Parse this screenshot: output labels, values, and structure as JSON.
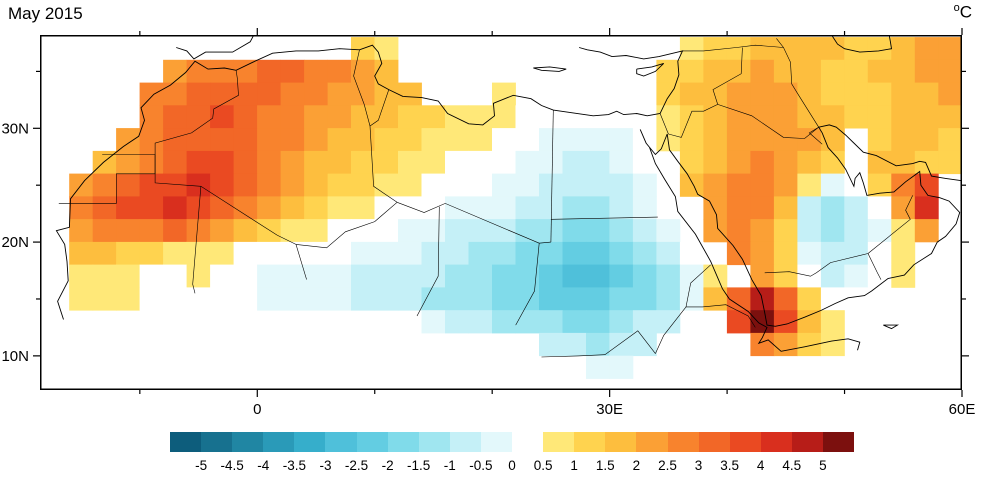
{
  "chart_data": {
    "type": "heatmap",
    "title": "May 2015",
    "units_sup": "o",
    "units_main": "C",
    "lon_range": [
      -18.5,
      60
    ],
    "lat_range": [
      7,
      38.2
    ],
    "grid_on": false,
    "x_axis": {
      "ticks": [
        {
          "value": 0,
          "label": "0"
        },
        {
          "value": 30,
          "label": "30E"
        },
        {
          "value": 60,
          "label": "60E"
        }
      ],
      "minor": [
        -10,
        10,
        20,
        40,
        50
      ]
    },
    "y_axis": {
      "ticks": [
        {
          "value": 10,
          "label": "10N"
        },
        {
          "value": 20,
          "label": "20N"
        },
        {
          "value": 30,
          "label": "30N"
        }
      ],
      "minor": [
        15,
        25,
        35
      ]
    },
    "colorbar": {
      "bin_edges": [
        -5,
        -4.5,
        -4,
        -3.5,
        -3,
        -2.5,
        -2,
        -1.5,
        -1,
        -0.5,
        0,
        0.5,
        1,
        1.5,
        2,
        2.5,
        3,
        3.5,
        4,
        4.5,
        5
      ],
      "labels": [
        "-5",
        "-4.5",
        "-4",
        "-3.5",
        "-3",
        "-2.5",
        "-2",
        "-1.5",
        "-1",
        "-0.5",
        "0",
        "0.5",
        "1",
        "1.5",
        "2",
        "2.5",
        "3",
        "3.5",
        "4",
        "4.5",
        "5"
      ],
      "colors": [
        "#0d5d7c",
        "#17718f",
        "#2086a3",
        "#2a9ab8",
        "#36aecb",
        "#4fc0da",
        "#63cde2",
        "#80dbea",
        "#a0e6f0",
        "#c5f0f7",
        "#e3f8fb",
        "#ffffff",
        "#ffe878",
        "#ffd34f",
        "#fdbe3e",
        "#fba035",
        "#f8832d",
        "#f26727",
        "#ea4a22",
        "#d92f1e",
        "#b71d18",
        "#7c100e"
      ]
    },
    "grid": {
      "lon_start": -17,
      "lon_step": 2,
      "lat_start": 37,
      "lat_step": -2,
      "values": [
        [
          null,
          null,
          null,
          null,
          null,
          null,
          null,
          null,
          null,
          null,
          null,
          null,
          null,
          1.25,
          0.75,
          null,
          null,
          null,
          null,
          null,
          null,
          null,
          null,
          null,
          null,
          null,
          null,
          0.75,
          1.25,
          1.25,
          1.75,
          1.75,
          1.75,
          1.75,
          1.25,
          1.25,
          1.75,
          2.25,
          2.25
        ],
        [
          null,
          null,
          null,
          null,
          null,
          2.25,
          2.75,
          2.75,
          2.75,
          3.25,
          3.25,
          2.75,
          2.75,
          2.25,
          1.75,
          null,
          null,
          null,
          null,
          null,
          null,
          null,
          null,
          null,
          null,
          null,
          1.25,
          1.25,
          1.75,
          1.75,
          2.25,
          1.75,
          1.75,
          1.25,
          1.25,
          1.75,
          1.75,
          2.25,
          2.25
        ],
        [
          null,
          null,
          null,
          null,
          2.75,
          2.75,
          3.25,
          3.25,
          3.25,
          3.25,
          2.75,
          2.75,
          2.25,
          2.25,
          1.75,
          1.75,
          null,
          null,
          null,
          0.75,
          null,
          null,
          null,
          null,
          null,
          null,
          1.25,
          1.75,
          1.75,
          2.25,
          2.25,
          2.25,
          1.75,
          1.25,
          1.25,
          1.25,
          1.75,
          1.75,
          2.25
        ],
        [
          null,
          null,
          null,
          null,
          2.75,
          3.25,
          3.25,
          3.75,
          3.25,
          2.75,
          2.75,
          2.25,
          2.25,
          1.75,
          1.75,
          1.25,
          1.25,
          0.75,
          0.75,
          0.75,
          0.25,
          0.25,
          0.25,
          0.25,
          0.25,
          0.25,
          0.75,
          1.25,
          1.75,
          2.25,
          2.25,
          2.25,
          1.75,
          1.75,
          1.25,
          1.25,
          1.75,
          1.75,
          1.75
        ],
        [
          null,
          null,
          null,
          2.25,
          2.75,
          3.25,
          3.25,
          3.25,
          3.25,
          2.75,
          2.75,
          2.25,
          1.75,
          1.75,
          1.25,
          1.25,
          0.75,
          0.75,
          0.75,
          0.25,
          0.25,
          -0.25,
          -0.25,
          -0.25,
          -0.25,
          0.25,
          0.75,
          1.25,
          1.75,
          2.25,
          2.25,
          2.25,
          2.25,
          1.75,
          null,
          1.25,
          1.75,
          1.75,
          1.25
        ],
        [
          null,
          null,
          1.75,
          2.25,
          2.75,
          3.25,
          3.75,
          3.75,
          3.25,
          2.75,
          2.25,
          1.75,
          1.75,
          1.25,
          1.25,
          0.75,
          0.75,
          0.25,
          0.25,
          0.25,
          -0.25,
          -0.25,
          -0.75,
          -0.75,
          -0.25,
          0.25,
          null,
          1.25,
          1.75,
          2.25,
          2.75,
          2.25,
          1.75,
          1.25,
          null,
          1.75,
          1.75,
          1.25,
          1.25
        ],
        [
          null,
          2.25,
          2.75,
          3.25,
          3.75,
          3.75,
          4.25,
          3.75,
          3.25,
          2.75,
          2.25,
          1.75,
          1.25,
          1.25,
          0.75,
          0.75,
          0.25,
          0.25,
          0.25,
          -0.25,
          -0.25,
          -0.75,
          -0.75,
          -0.75,
          -0.75,
          -0.25,
          null,
          1.75,
          2.25,
          2.75,
          2.75,
          2.25,
          0.75,
          -0.25,
          0.25,
          1.25,
          2.75,
          3.75,
          null
        ],
        [
          null,
          2.75,
          3.25,
          3.75,
          3.75,
          4.25,
          3.75,
          3.25,
          2.75,
          2.25,
          1.75,
          1.25,
          0.75,
          0.75,
          0.25,
          0.25,
          0.25,
          -0.25,
          -0.25,
          -0.25,
          -0.75,
          -0.75,
          -1.25,
          -1.25,
          -0.75,
          -0.25,
          null,
          null,
          2.25,
          2.75,
          2.75,
          1.75,
          -0.75,
          -1.25,
          -0.75,
          0.25,
          2.25,
          4.25,
          null
        ],
        [
          null,
          2.25,
          2.75,
          2.75,
          2.75,
          3.25,
          2.75,
          2.25,
          1.75,
          1.25,
          0.75,
          0.75,
          0.25,
          0.25,
          0.25,
          -0.25,
          -0.25,
          -0.75,
          -0.75,
          -0.75,
          -1.25,
          -1.25,
          -1.75,
          -1.75,
          -1.25,
          -0.75,
          -0.25,
          null,
          2.25,
          2.75,
          2.25,
          1.25,
          -0.75,
          -1.25,
          -0.75,
          -0.25,
          0.75,
          2.25,
          null
        ],
        [
          null,
          1.75,
          1.75,
          1.25,
          1.25,
          0.75,
          0.75,
          0.75,
          0.25,
          0.25,
          0.25,
          0.25,
          0.25,
          -0.25,
          -0.25,
          -0.25,
          -0.75,
          -0.75,
          -1.25,
          -1.25,
          -1.75,
          -1.75,
          -2.25,
          -2.25,
          -1.75,
          -1.25,
          -0.75,
          0.25,
          null,
          2.75,
          2.25,
          1.25,
          -0.25,
          -0.75,
          -0.75,
          0.25,
          0.75,
          null,
          null
        ],
        [
          null,
          0.75,
          0.75,
          0.75,
          0.25,
          0.25,
          0.75,
          0.25,
          0.25,
          -0.25,
          -0.25,
          -0.25,
          -0.25,
          -0.75,
          -0.75,
          -0.75,
          -0.75,
          -1.25,
          -1.25,
          -1.75,
          -1.75,
          -2.25,
          -2.75,
          -2.75,
          -2.25,
          -1.75,
          -1.25,
          -0.25,
          0.75,
          null,
          2.25,
          1.25,
          0.25,
          -0.75,
          -0.25,
          0.25,
          0.75,
          null,
          null
        ],
        [
          null,
          0.75,
          0.75,
          0.75,
          0.25,
          0.25,
          0.25,
          0.25,
          0.25,
          -0.25,
          -0.25,
          -0.25,
          -0.25,
          -0.75,
          -0.75,
          -0.75,
          -1.25,
          -1.25,
          -1.25,
          -1.75,
          -1.75,
          -2.25,
          -2.25,
          -2.25,
          -1.75,
          -1.75,
          -1.25,
          -0.25,
          1.75,
          3.25,
          4.75,
          3.25,
          1.25,
          0.25,
          0.25,
          null,
          null,
          null,
          null
        ],
        [
          null,
          null,
          null,
          null,
          null,
          null,
          null,
          null,
          null,
          null,
          null,
          null,
          null,
          null,
          null,
          null,
          -0.25,
          -0.75,
          -0.75,
          -1.25,
          -1.25,
          -1.25,
          -1.75,
          -1.75,
          -1.25,
          -0.75,
          -0.75,
          null,
          null,
          3.75,
          5.25,
          3.75,
          1.75,
          0.75,
          null,
          null,
          null,
          null,
          null
        ],
        [
          null,
          null,
          null,
          null,
          null,
          null,
          null,
          null,
          null,
          null,
          null,
          null,
          null,
          null,
          null,
          null,
          null,
          null,
          null,
          null,
          null,
          -0.75,
          -0.75,
          -1.25,
          -0.75,
          -0.75,
          null,
          null,
          null,
          null,
          2.75,
          2.25,
          1.25,
          0.75,
          null,
          null,
          null,
          null,
          null
        ],
        [
          null,
          null,
          null,
          null,
          null,
          null,
          null,
          null,
          null,
          null,
          null,
          null,
          null,
          null,
          null,
          null,
          null,
          null,
          null,
          null,
          null,
          null,
          null,
          -0.25,
          -0.25,
          null,
          null,
          null,
          null,
          null,
          null,
          null,
          null,
          null,
          null,
          null,
          null,
          null,
          null
        ]
      ]
    }
  }
}
